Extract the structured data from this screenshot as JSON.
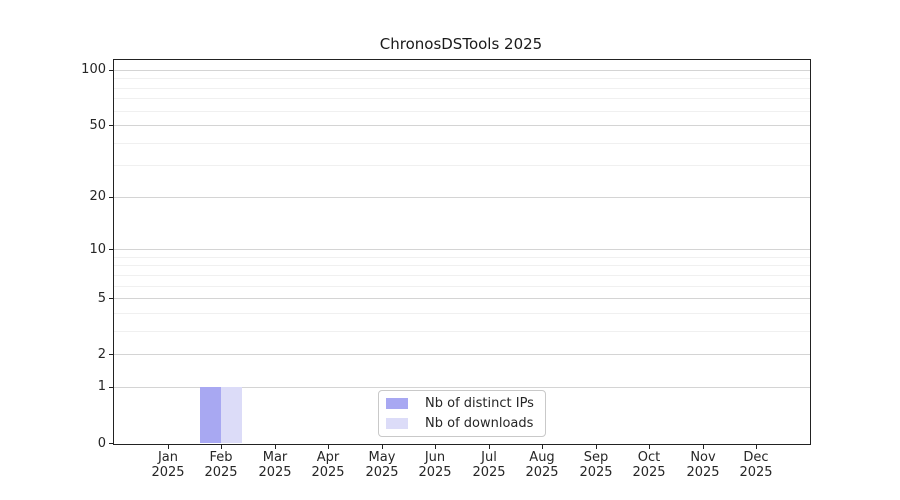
{
  "chart_data": {
    "type": "bar",
    "title": "ChronosDSTools 2025",
    "categories": [
      "Jan",
      "Feb",
      "Mar",
      "Apr",
      "May",
      "Jun",
      "Jul",
      "Aug",
      "Sep",
      "Oct",
      "Nov",
      "Dec"
    ],
    "category_year": "2025",
    "series": [
      {
        "name": "Nb of distinct IPs",
        "color": "#a8a8f2",
        "values": [
          0,
          1,
          0,
          0,
          0,
          0,
          0,
          0,
          0,
          0,
          0,
          0
        ]
      },
      {
        "name": "Nb of downloads",
        "color": "#dcdcf8",
        "values": [
          0,
          1,
          0,
          0,
          0,
          0,
          0,
          0,
          0,
          0,
          0,
          0
        ]
      }
    ],
    "y_axis": {
      "scale": "log1p",
      "major_ticks": [
        0,
        1,
        2,
        5,
        10,
        20,
        50,
        100
      ],
      "minor_gridlines": [
        3,
        4,
        6,
        7,
        8,
        9,
        30,
        40,
        60,
        70,
        80,
        90
      ],
      "max": 113
    },
    "legend_position": "lower center",
    "grid": true
  },
  "style": {
    "background": "#ffffff",
    "text_color": "#262626",
    "spine_color": "#222222",
    "grid_major_color": "#d4d4d4",
    "grid_minor_color": "#f0f0f0",
    "legend_border_color": "#c9c9c9",
    "legend_bg": "#ffffff"
  }
}
